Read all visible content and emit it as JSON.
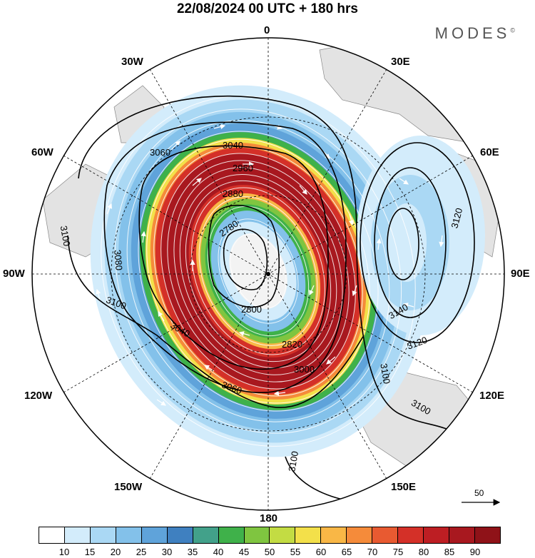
{
  "title": "22/08/2024  00 UTC  + 180 hrs",
  "brand": "MODES",
  "brand_mark": "©",
  "longitude_labels": {
    "lon_0": "0",
    "lon_30e": "30E",
    "lon_60e": "60E",
    "lon_90e": "90E",
    "lon_120e": "120E",
    "lon_150e": "150E",
    "lon_180": "180",
    "lon_150w": "150W",
    "lon_120w": "120W",
    "lon_90w": "90W",
    "lon_60w": "60W",
    "lon_30w": "30W"
  },
  "contour_labels": [
    "3100",
    "3080",
    "3060",
    "3040",
    "2960",
    "2880",
    "2780",
    "2800",
    "2820",
    "3100",
    "3140",
    "3120",
    "3120",
    "3100",
    "3100",
    "3100",
    "3060",
    "3040",
    "3000"
  ],
  "reference_vector_label": "50",
  "colorbar": {
    "colors": [
      "#ffffff",
      "#d3ecfb",
      "#aad8f4",
      "#83c1ea",
      "#5fa3da",
      "#3f80c0",
      "#42a18a",
      "#3fb14a",
      "#7fc540",
      "#c3dc43",
      "#f3e04a",
      "#f9b746",
      "#f58b3a",
      "#e85a31",
      "#d43028",
      "#bd1e23",
      "#a8181f",
      "#8f1218"
    ],
    "ticks": [
      "10",
      "15",
      "20",
      "25",
      "30",
      "35",
      "40",
      "45",
      "50",
      "55",
      "60",
      "65",
      "70",
      "75",
      "80",
      "85",
      "90"
    ]
  }
}
